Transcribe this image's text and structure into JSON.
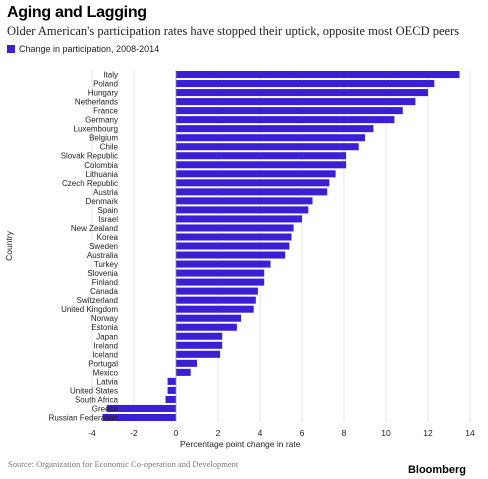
{
  "title": "Aging and Lagging",
  "subtitle": "Older American's participation rates have stopped their uptick, opposite most OECD peers",
  "source": "Source: Organization for Economic Co-operation and Development",
  "brand": "Bloomberg",
  "colors": {
    "bar": "#3a1fd4",
    "axis": "#cccccc",
    "text": "#222222"
  },
  "chart_data": {
    "type": "bar",
    "orientation": "horizontal",
    "title": "Aging and Lagging",
    "xlabel": "Percentage point change in rate",
    "ylabel": "Country",
    "xlim": [
      -4,
      14
    ],
    "xticks": [
      -4,
      -2,
      0,
      2,
      4,
      6,
      8,
      10,
      12,
      14
    ],
    "legend": "top-left",
    "series": [
      {
        "name": "Change in participation, 2008-2014",
        "values": [
          13.5,
          12.3,
          12.0,
          11.4,
          10.8,
          10.4,
          9.4,
          9.0,
          8.7,
          8.1,
          8.1,
          7.6,
          7.3,
          7.2,
          6.5,
          6.3,
          6.0,
          5.6,
          5.5,
          5.4,
          5.2,
          4.5,
          4.2,
          4.2,
          3.9,
          3.8,
          3.7,
          3.1,
          2.9,
          2.2,
          2.2,
          2.1,
          1.0,
          0.7,
          -0.4,
          -0.4,
          -0.5,
          -3.3,
          -3.5
        ]
      }
    ],
    "categories": [
      "Italy",
      "Poland",
      "Hungary",
      "Netherlands",
      "France",
      "Germany",
      "Luxembourg",
      "Belgium",
      "Chile",
      "Slovak Republic",
      "Colombia",
      "Lithuania",
      "Czech Republic",
      "Austria",
      "Denmark",
      "Spain",
      "Israel",
      "New Zealand",
      "Korea",
      "Sweden",
      "Australia",
      "Turkey",
      "Slovenia",
      "Finland",
      "Canada",
      "Switzerland",
      "United Kingdom",
      "Norway",
      "Estonia",
      "Japan",
      "Ireland",
      "Iceland",
      "Portugal",
      "Mexico",
      "Latvia",
      "United States",
      "South Africa",
      "Greece",
      "Russian Federation"
    ]
  }
}
